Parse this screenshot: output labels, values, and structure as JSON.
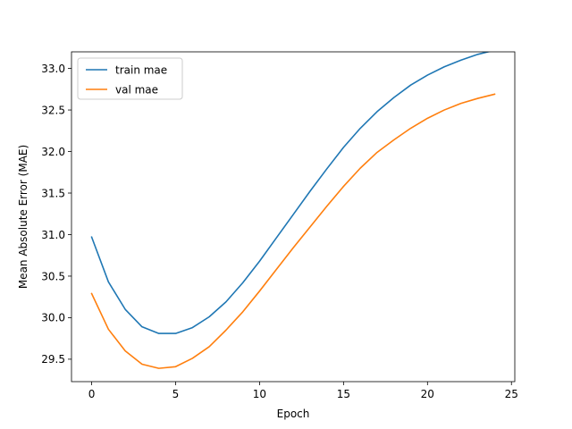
{
  "chart_data": {
    "type": "line",
    "title": "",
    "xlabel": "Epoch",
    "ylabel": "Mean Absolute Error (MAE)",
    "xlim": [
      -1.2,
      25.2
    ],
    "ylim": [
      29.23,
      33.2
    ],
    "xticks": [
      0,
      5,
      10,
      15,
      20,
      25
    ],
    "yticks": [
      29.5,
      30.0,
      30.5,
      31.0,
      31.5,
      32.0,
      32.5,
      33.0
    ],
    "xtick_labels": [
      "0",
      "5",
      "10",
      "15",
      "20",
      "25"
    ],
    "ytick_labels": [
      "29.5",
      "30.0",
      "30.5",
      "31.0",
      "31.5",
      "32.0",
      "32.5",
      "33.0"
    ],
    "grid": false,
    "legend_position": "top-left",
    "x": [
      0,
      1,
      2,
      3,
      4,
      5,
      6,
      7,
      8,
      9,
      10,
      11,
      12,
      13,
      14,
      15,
      16,
      17,
      18,
      19,
      20,
      21,
      22,
      23,
      24
    ],
    "series": [
      {
        "name": "train mae",
        "color": "#1f77b4",
        "values": [
          30.97,
          30.43,
          30.1,
          29.89,
          29.81,
          29.81,
          29.88,
          30.01,
          30.19,
          30.42,
          30.68,
          30.96,
          31.24,
          31.52,
          31.79,
          32.05,
          32.28,
          32.48,
          32.65,
          32.8,
          32.92,
          33.02,
          33.1,
          33.17,
          33.22
        ]
      },
      {
        "name": "val mae",
        "color": "#ff7f0e",
        "values": [
          30.29,
          29.86,
          29.6,
          29.44,
          29.39,
          29.41,
          29.51,
          29.65,
          29.85,
          30.07,
          30.32,
          30.58,
          30.84,
          31.09,
          31.34,
          31.58,
          31.8,
          31.99,
          32.14,
          32.28,
          32.4,
          32.5,
          32.58,
          32.64,
          32.69
        ]
      }
    ]
  }
}
